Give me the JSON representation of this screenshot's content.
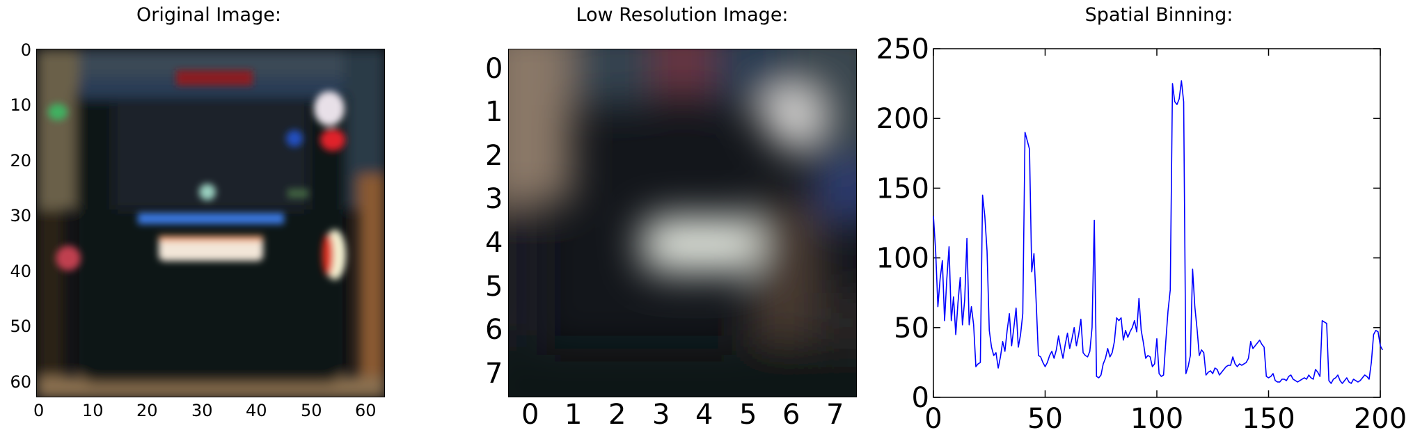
{
  "panels": {
    "original": {
      "title": "Original Image:",
      "y_ticks": [
        "0",
        "10",
        "20",
        "30",
        "40",
        "50",
        "60"
      ],
      "x_ticks": [
        "0",
        "10",
        "20",
        "30",
        "40",
        "50",
        "60"
      ]
    },
    "lowres": {
      "title": "Low Resolution Image:",
      "y_ticks": [
        "0",
        "1",
        "2",
        "3",
        "4",
        "5",
        "6",
        "7"
      ],
      "x_ticks": [
        "0",
        "1",
        "2",
        "3",
        "4",
        "5",
        "6",
        "7"
      ]
    },
    "binning": {
      "title": "Spatial Binning:"
    }
  },
  "chart_data": [
    {
      "type": "heatmap",
      "title": "Original Image:",
      "xlim": [
        0,
        63
      ],
      "ylim": [
        0,
        63
      ],
      "x_ticks": [
        0,
        10,
        20,
        30,
        40,
        50,
        60
      ],
      "y_ticks": [
        0,
        10,
        20,
        30,
        40,
        50,
        60
      ],
      "content": "blurred 64x64 RGB photo of the rear of a dark car"
    },
    {
      "type": "heatmap",
      "title": "Low Resolution Image:",
      "xlim": [
        0,
        7
      ],
      "ylim": [
        0,
        7
      ],
      "x_ticks": [
        0,
        1,
        2,
        3,
        4,
        5,
        6,
        7
      ],
      "y_ticks": [
        0,
        1,
        2,
        3,
        4,
        5,
        6,
        7
      ],
      "content": "8x8 downsampled RGB version of the same image"
    },
    {
      "type": "line",
      "title": "Spatial Binning:",
      "xlim": [
        0,
        200
      ],
      "ylim": [
        0,
        250
      ],
      "x_ticks": [
        0,
        50,
        100,
        150,
        200
      ],
      "y_ticks": [
        0,
        50,
        100,
        150,
        200,
        250
      ],
      "grid": false,
      "series": [
        {
          "color": "#0000ff",
          "values": [
            130,
            105,
            65,
            85,
            98,
            55,
            85,
            108,
            55,
            72,
            45,
            68,
            86,
            52,
            70,
            114,
            52,
            65,
            52,
            22,
            24,
            25,
            145,
            130,
            105,
            48,
            36,
            30,
            32,
            21,
            29,
            40,
            33,
            48,
            60,
            37,
            50,
            64,
            36,
            45,
            60,
            190,
            184,
            178,
            90,
            103,
            68,
            30,
            29,
            25,
            22,
            25,
            30,
            33,
            28,
            34,
            44,
            35,
            28,
            38,
            46,
            35,
            42,
            50,
            37,
            45,
            56,
            32,
            30,
            29,
            33,
            50,
            127,
            15,
            14,
            16,
            24,
            28,
            35,
            29,
            32,
            40,
            57,
            55,
            57,
            41,
            48,
            43,
            47,
            50,
            55,
            47,
            71,
            48,
            39,
            28,
            30,
            29,
            22,
            24,
            42,
            17,
            15,
            16,
            40,
            62,
            77,
            225,
            212,
            210,
            214,
            227,
            212,
            17,
            22,
            30,
            92,
            65,
            49,
            30,
            34,
            32,
            16,
            18,
            19,
            17,
            21,
            20,
            16,
            18,
            20,
            22,
            23,
            23,
            29,
            24,
            22,
            24,
            23,
            24,
            25,
            28,
            40,
            35,
            37,
            39,
            41,
            38,
            36,
            15,
            14,
            15,
            17,
            12,
            11,
            11,
            13,
            13,
            12,
            15,
            16,
            13,
            12,
            11,
            12,
            13,
            14,
            13,
            16,
            14,
            13,
            20,
            18,
            15,
            55,
            54,
            53,
            12,
            10,
            13,
            14,
            16,
            12,
            10,
            12,
            14,
            11,
            10,
            13,
            12,
            11,
            12,
            14,
            16,
            15,
            13,
            25,
            45,
            48,
            47,
            37,
            34
          ]
        }
      ]
    }
  ]
}
